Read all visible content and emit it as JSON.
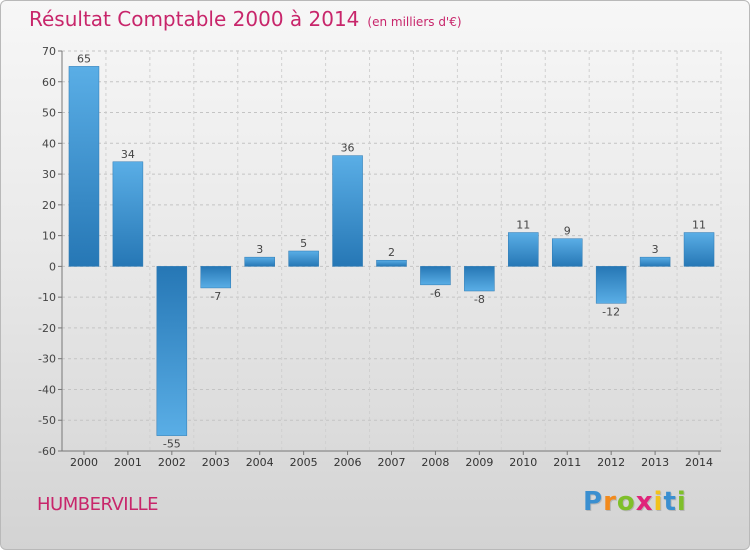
{
  "colors": {
    "title": "#c8266b",
    "bar_light": "#5aaee6",
    "bar_dark": "#2677b5"
  },
  "chart_data": {
    "type": "bar",
    "title": "Résultat Comptable 2000 à 2014",
    "subtitle": "(en milliers d'€)",
    "categories": [
      "2000",
      "2001",
      "2002",
      "2003",
      "2004",
      "2005",
      "2006",
      "2007",
      "2008",
      "2009",
      "2010",
      "2011",
      "2012",
      "2013",
      "2014"
    ],
    "values": [
      65,
      34,
      -55,
      -7,
      3,
      5,
      36,
      2,
      -6,
      -8,
      11,
      9,
      -12,
      3,
      11
    ],
    "yticks": [
      70,
      60,
      50,
      40,
      30,
      20,
      10,
      0,
      -10,
      -20,
      -30,
      -40,
      -50,
      -60
    ],
    "ylim": [
      -60,
      70
    ],
    "xlabel": "",
    "ylabel": "",
    "grid": "horizontal-dashed"
  },
  "footer": {
    "commune": "HUMBERVILLE",
    "brand_letters": [
      {
        "char": "P",
        "color": "#3a8fd0"
      },
      {
        "char": "r",
        "color": "#f28a1c"
      },
      {
        "char": "o",
        "color": "#7fbf2a"
      },
      {
        "char": "x",
        "color": "#e0237a"
      },
      {
        "char": "i",
        "color": "#f2c21c"
      },
      {
        "char": "t",
        "color": "#3a8fd0"
      },
      {
        "char": "i",
        "color": "#7fbf2a"
      }
    ]
  }
}
